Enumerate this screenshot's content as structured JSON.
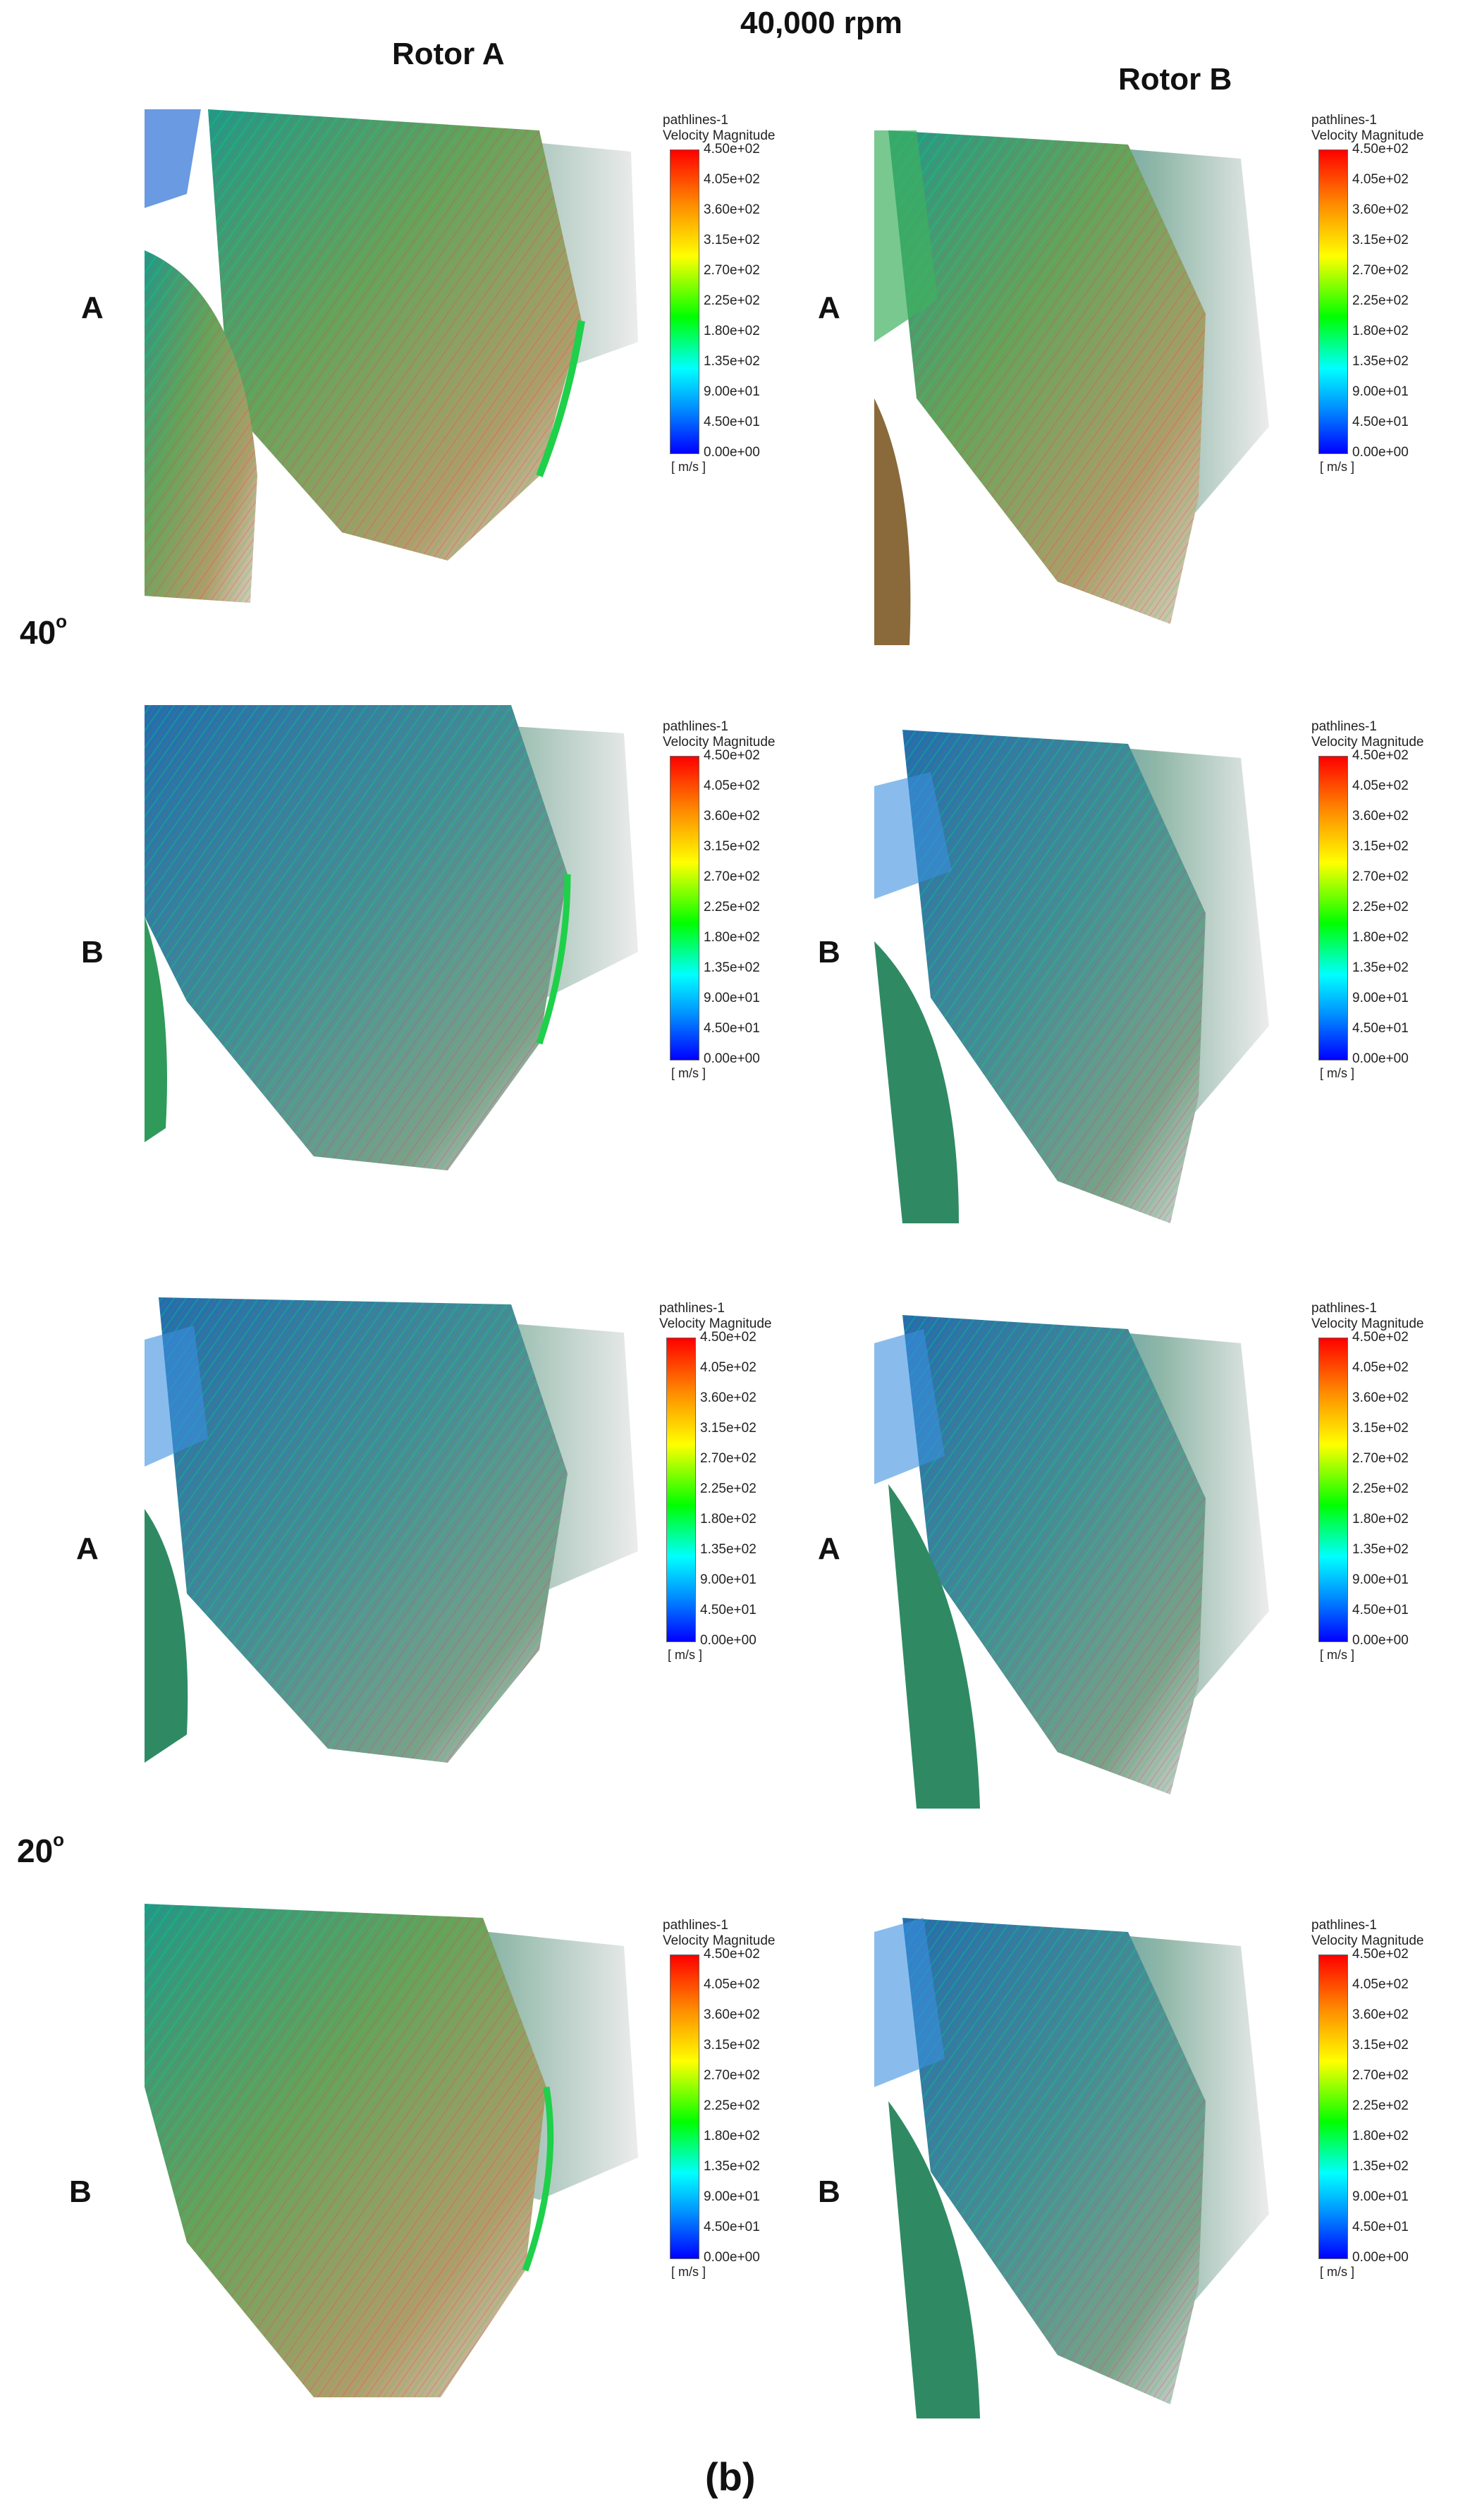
{
  "header": {
    "speed": "40,000 rpm",
    "rotor_a": "Rotor A",
    "rotor_b": "Rotor B"
  },
  "angles": {
    "upper": {
      "value": "40",
      "unit": "o"
    },
    "lower": {
      "value": "20",
      "unit": "o"
    }
  },
  "row_labels": [
    "A",
    "B",
    "A",
    "B"
  ],
  "legend": {
    "title_line1": "pathlines-1",
    "title_line2": "Velocity Magnitude",
    "ticks": [
      "4.50e+02",
      "4.05e+02",
      "3.60e+02",
      "3.15e+02",
      "2.70e+02",
      "2.25e+02",
      "1.80e+02",
      "1.35e+02",
      "9.00e+01",
      "4.50e+01",
      "0.00e+00"
    ],
    "unit": "[ m/s ]",
    "colors": [
      "#ff0000",
      "#ff8c00",
      "#ffff00",
      "#00ff00",
      "#00ffff",
      "#0090ff",
      "#0000ff"
    ]
  },
  "caption": "(b)"
}
